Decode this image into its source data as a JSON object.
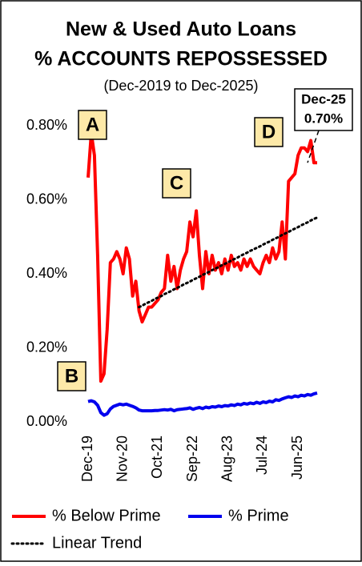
{
  "chart_data": {
    "type": "line",
    "title": [
      "New & Used Auto Loans",
      "% ACCOUNTS REPOSSESSED"
    ],
    "subtitle": "(Dec-2019 to Dec-2025)",
    "categories": [
      "Dec-19",
      null,
      null,
      null,
      null,
      null,
      null,
      null,
      null,
      null,
      null,
      "Nov-20",
      null,
      null,
      null,
      null,
      null,
      null,
      null,
      null,
      null,
      null,
      "Oct-21",
      null,
      null,
      null,
      null,
      null,
      null,
      null,
      null,
      null,
      null,
      "Sep-22",
      null,
      null,
      null,
      null,
      null,
      null,
      null,
      null,
      null,
      null,
      "Aug-23",
      null,
      null,
      null,
      null,
      null,
      null,
      null,
      null,
      null,
      null,
      "Jul-24",
      null,
      null,
      null,
      null,
      null,
      null,
      null,
      null,
      null,
      null,
      "Jun-25",
      null,
      null,
      null,
      null,
      null,
      null
    ],
    "series": [
      {
        "name": "% Below Prime",
        "color": "#ff0000",
        "style": "solid",
        "values": [
          0.66,
          0.78,
          0.72,
          0.45,
          0.11,
          0.13,
          0.25,
          0.43,
          0.44,
          0.46,
          0.44,
          0.4,
          0.47,
          0.44,
          0.34,
          0.38,
          0.3,
          0.27,
          0.29,
          0.31,
          0.31,
          0.32,
          0.33,
          0.35,
          0.36,
          0.45,
          0.38,
          0.42,
          0.36,
          0.41,
          0.44,
          0.46,
          0.54,
          0.5,
          0.57,
          0.45,
          0.36,
          0.46,
          0.4,
          0.45,
          0.41,
          0.43,
          0.4,
          0.44,
          0.41,
          0.45,
          0.42,
          0.43,
          0.41,
          0.44,
          0.42,
          0.44,
          0.42,
          0.41,
          0.4,
          0.43,
          0.45,
          0.43,
          0.47,
          0.44,
          0.46,
          0.54,
          0.44,
          0.65,
          0.66,
          0.67,
          0.72,
          0.74,
          0.74,
          0.73,
          0.76,
          0.7,
          0.7
        ]
      },
      {
        "name": "% Prime",
        "color": "#0000ee",
        "style": "solid",
        "values": [
          0.055,
          0.057,
          0.054,
          0.045,
          0.025,
          0.018,
          0.022,
          0.035,
          0.042,
          0.045,
          0.048,
          0.046,
          0.048,
          0.045,
          0.042,
          0.038,
          0.032,
          0.03,
          0.03,
          0.03,
          0.03,
          0.031,
          0.031,
          0.032,
          0.033,
          0.032,
          0.034,
          0.03,
          0.033,
          0.034,
          0.035,
          0.036,
          0.038,
          0.034,
          0.037,
          0.039,
          0.036,
          0.04,
          0.038,
          0.041,
          0.04,
          0.043,
          0.041,
          0.044,
          0.043,
          0.046,
          0.044,
          0.048,
          0.046,
          0.05,
          0.048,
          0.051,
          0.049,
          0.053,
          0.05,
          0.054,
          0.052,
          0.056,
          0.054,
          0.06,
          0.058,
          0.062,
          0.065,
          0.068,
          0.066,
          0.07,
          0.068,
          0.072,
          0.07,
          0.074,
          0.072,
          0.076,
          0.078
        ]
      },
      {
        "name": "Linear Trend",
        "color": "#000000",
        "style": "dotted",
        "values": [
          null,
          null,
          null,
          null,
          null,
          null,
          null,
          null,
          null,
          null,
          null,
          null,
          null,
          null,
          null,
          null,
          0.31,
          0.314,
          0.319,
          0.323,
          0.327,
          0.332,
          0.336,
          0.34,
          0.345,
          0.349,
          0.353,
          0.358,
          0.362,
          0.366,
          0.371,
          0.375,
          0.379,
          0.384,
          0.388,
          0.392,
          0.397,
          0.401,
          0.405,
          0.41,
          0.414,
          0.418,
          0.423,
          0.427,
          0.431,
          0.436,
          0.44,
          0.444,
          0.449,
          0.453,
          0.457,
          0.462,
          0.466,
          0.47,
          0.474,
          0.479,
          0.483,
          0.487,
          0.492,
          0.496,
          0.5,
          0.505,
          0.509,
          0.513,
          0.518,
          0.522,
          0.526,
          0.531,
          0.535,
          0.539,
          0.544,
          0.548,
          0.552
        ]
      }
    ],
    "ylim": [
      0,
      0.8
    ],
    "yticks": [
      {
        "value": 0,
        "label": "0.00%"
      },
      {
        "value": 0.2,
        "label": "0.20%"
      },
      {
        "value": 0.4,
        "label": "0.40%"
      },
      {
        "value": 0.6,
        "label": "0.60%"
      },
      {
        "value": 0.8,
        "label": "0.80%"
      }
    ],
    "annotations": [
      "A",
      "B",
      "C",
      "D"
    ],
    "callout": [
      "Dec-25",
      "0.70%"
    ]
  }
}
